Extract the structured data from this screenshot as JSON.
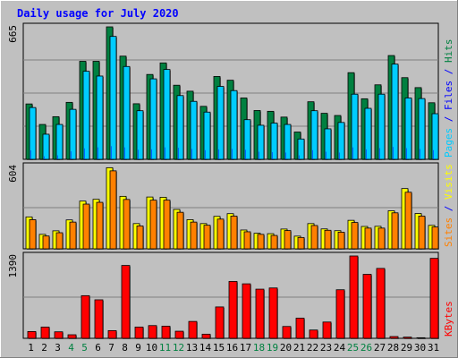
{
  "chart_data": [
    {
      "type": "bar",
      "title": "Daily usage for July 2020",
      "ymax_label": "665",
      "ymax": 665,
      "right_labels": [
        {
          "text": "Pages",
          "color": "#00ccff"
        },
        {
          "text": " / ",
          "color": "#0000ff"
        },
        {
          "text": "Files",
          "color": "#0000ff"
        },
        {
          "text": " / ",
          "color": "#0000ff"
        },
        {
          "text": "Hits",
          "color": "#008040"
        }
      ],
      "series": [
        {
          "name": "Hits",
          "color": "#008040",
          "values": [
            278,
            175,
            214,
            286,
            492,
            492,
            665,
            518,
            279,
            426,
            484,
            372,
            342,
            266,
            416,
            397,
            308,
            245,
            241,
            212,
            137,
            289,
            231,
            220,
            435,
            304,
            374,
            521,
            410,
            360,
            284
          ]
        },
        {
          "name": "Files",
          "color": "#0000ff",
          "values": [
            45,
            15,
            20,
            40,
            55,
            60,
            66,
            60,
            48,
            50,
            60,
            58,
            52,
            46,
            50,
            52,
            48,
            38,
            36,
            34,
            20,
            46,
            38,
            34,
            60,
            50,
            56,
            62,
            56,
            52,
            46
          ]
        },
        {
          "name": "Pages",
          "color": "#00ccff",
          "values": [
            260,
            126,
            175,
            251,
            442,
            418,
            617,
            466,
            244,
            404,
            451,
            320,
            291,
            237,
            366,
            345,
            199,
            171,
            182,
            175,
            102,
            244,
            153,
            185,
            327,
            256,
            327,
            478,
            308,
            305,
            229
          ]
        }
      ],
      "categories": [
        "1",
        "2",
        "3",
        "4",
        "5",
        "6",
        "7",
        "8",
        "9",
        "10",
        "11",
        "12",
        "13",
        "14",
        "15",
        "16",
        "17",
        "18",
        "19",
        "20",
        "21",
        "22",
        "23",
        "24",
        "25",
        "26",
        "27",
        "28",
        "29",
        "30",
        "31"
      ],
      "weekend_days": [
        4,
        5,
        11,
        12,
        18,
        19,
        25,
        26
      ]
    },
    {
      "type": "bar",
      "ymax_label": "604",
      "ymax": 604,
      "right_labels": [
        {
          "text": "Sites",
          "color": "#ff8000"
        },
        {
          "text": " / ",
          "color": "#0000ff"
        },
        {
          "text": "Visits",
          "color": "#ffff00"
        }
      ],
      "series": [
        {
          "name": "Visits",
          "color": "#ffff00",
          "values": [
            234,
            106,
            132,
            212,
            350,
            363,
            595,
            385,
            185,
            380,
            378,
            289,
            214,
            185,
            238,
            258,
            138,
            114,
            111,
            145,
            93,
            185,
            146,
            133,
            209,
            164,
            165,
            279,
            442,
            259,
            172
          ]
        },
        {
          "name": "Sites",
          "color": "#ff8000",
          "values": [
            214,
            94,
            118,
            196,
            328,
            341,
            572,
            362,
            168,
            357,
            357,
            268,
            196,
            173,
            218,
            240,
            125,
            106,
            98,
            134,
            83,
            171,
            136,
            122,
            193,
            152,
            152,
            264,
            415,
            240,
            160
          ]
        }
      ]
    },
    {
      "type": "bar",
      "ymax_label": "1390",
      "ymax": 1390,
      "right_labels": [
        {
          "text": "KBytes",
          "color": "#ff0000"
        }
      ],
      "series": [
        {
          "name": "KBytes",
          "color": "#ff0000",
          "values": [
            115,
            190,
            110,
            60,
            720,
            650,
            130,
            1230,
            190,
            215,
            205,
            120,
            285,
            70,
            530,
            960,
            920,
            830,
            850,
            200,
            340,
            140,
            275,
            820,
            1390,
            1080,
            1180,
            30,
            20,
            10,
            1350
          ]
        }
      ]
    }
  ],
  "colors": {
    "background": "#c0c0c0",
    "plot_bg": "#c0c0c0",
    "frame_dark": "#808080",
    "frame_light": "#ffffff",
    "title": "#0000ff",
    "weekend_label": "#008040",
    "weekday_label": "#000000"
  }
}
